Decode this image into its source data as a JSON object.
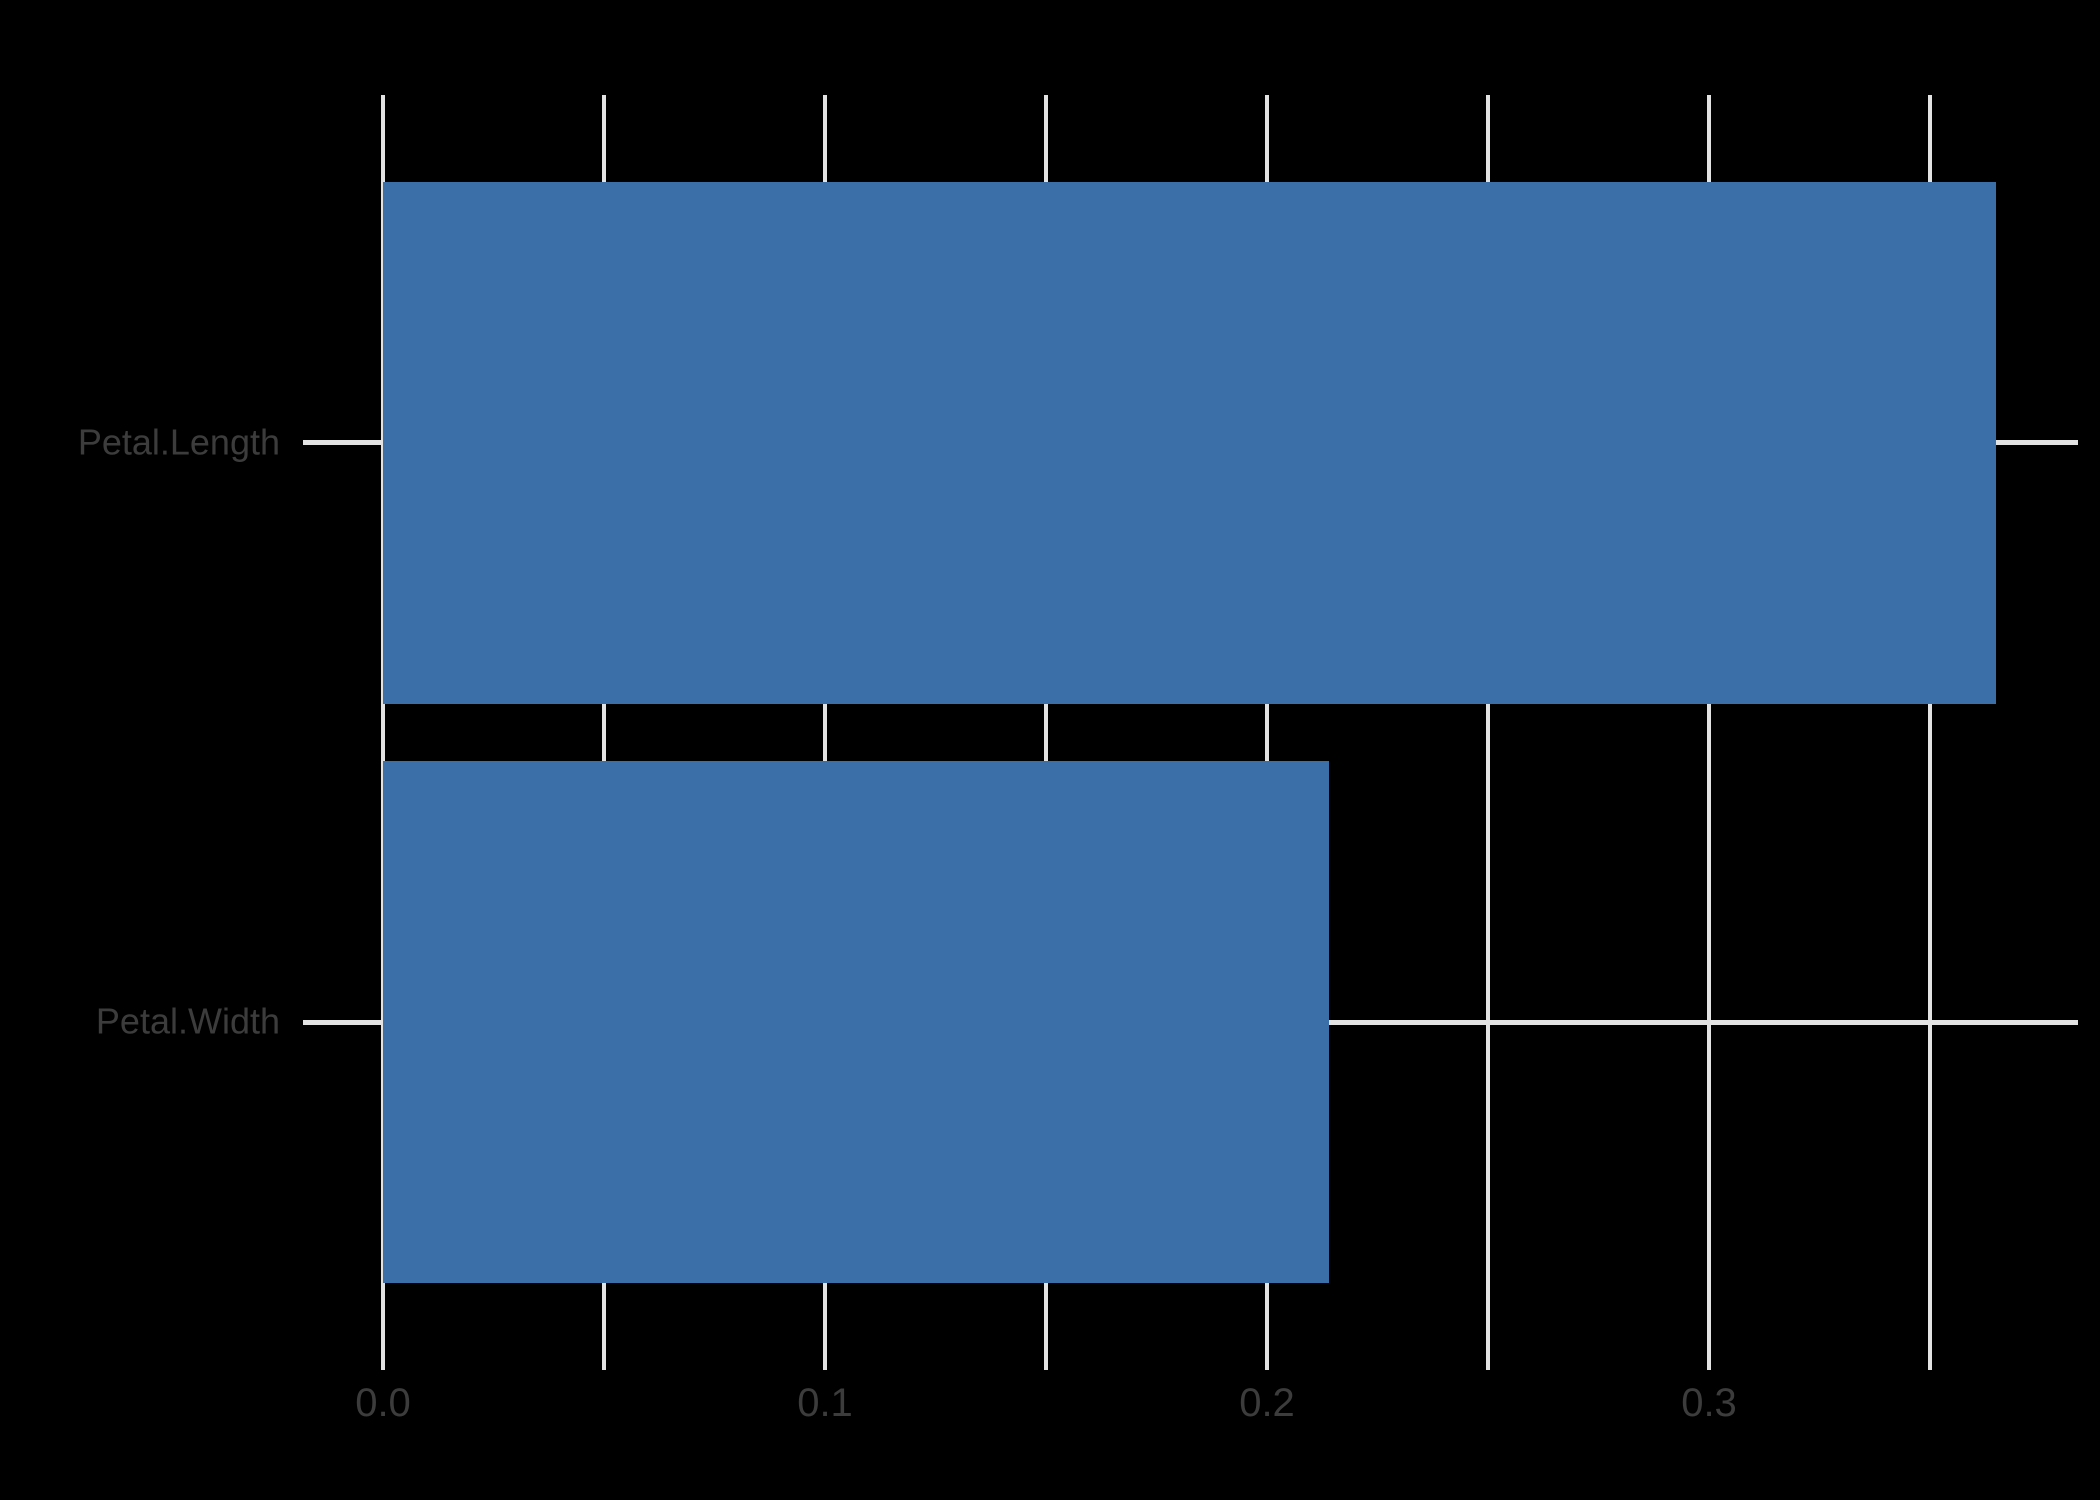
{
  "chart_data": {
    "type": "bar",
    "orientation": "horizontal",
    "title": "",
    "subtitle": "",
    "xlabel": "",
    "ylabel": "",
    "categories": [
      "Petal.Length",
      "Petal.Width"
    ],
    "values": [
      0.365,
      0.214
    ],
    "xlim": [
      0,
      0.3835
    ],
    "x_ticks": [
      0,
      0.05,
      0.1,
      0.15,
      0.2,
      0.25,
      0.3,
      0.35
    ],
    "x_tick_labels": [
      "0.0",
      "",
      "0.1",
      "",
      "0.2",
      "",
      "0.3",
      ""
    ],
    "bar_width_fraction": 0.9,
    "grid": true,
    "legend": false,
    "colors": {
      "background": "#000000",
      "bar": "#3A6FA7",
      "grid": "#E3E3E3",
      "text": "#3C3C3C"
    }
  }
}
